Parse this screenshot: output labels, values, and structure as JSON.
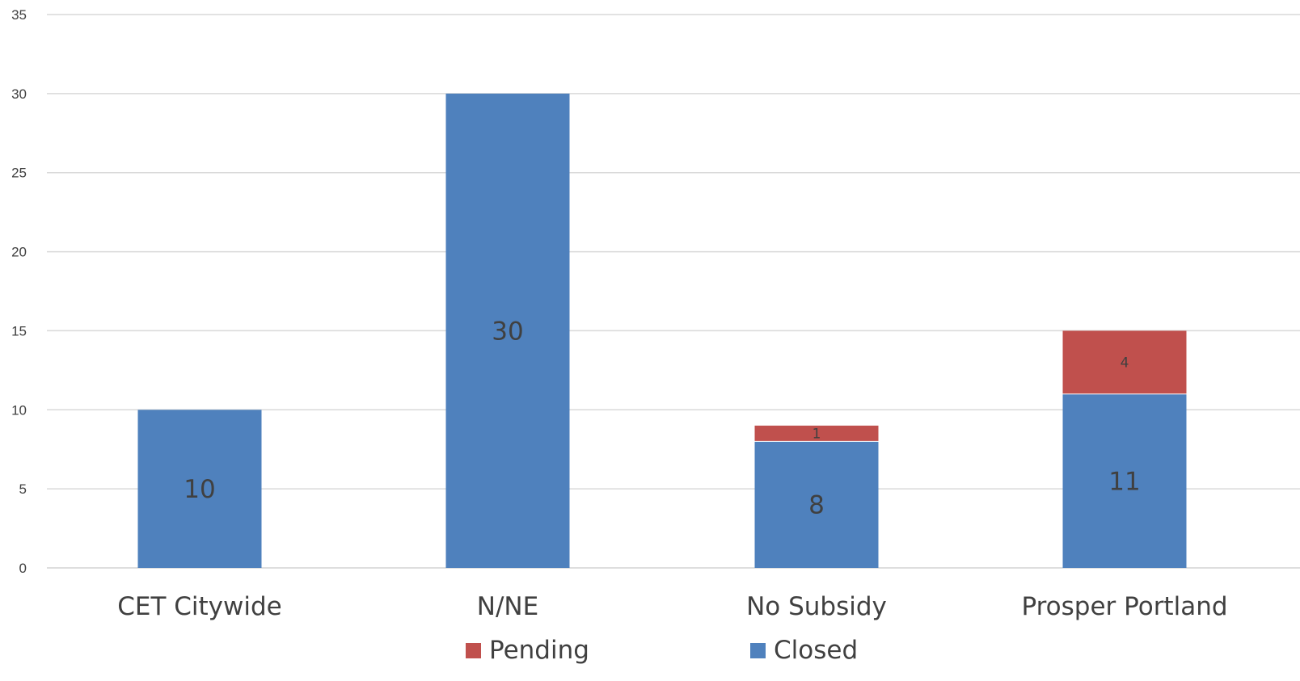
{
  "chart_data": {
    "type": "bar",
    "stacked": true,
    "categories": [
      "CET Citywide",
      "N/NE",
      "No Subsidy",
      "Prosper Portland"
    ],
    "series": [
      {
        "name": "Closed",
        "values": [
          10,
          30,
          8,
          11
        ],
        "color": "#4f81bd"
      },
      {
        "name": "Pending",
        "values": [
          0,
          0,
          1,
          4
        ],
        "color": "#c0504d"
      }
    ],
    "legend": {
      "position": "bottom",
      "items": [
        {
          "label": "Pending",
          "color": "#c0504d"
        },
        {
          "label": "Closed",
          "color": "#4f81bd"
        }
      ]
    },
    "yticks": [
      "0",
      "5",
      "10",
      "15",
      "20",
      "25",
      "30",
      "35"
    ],
    "ylim": [
      0,
      35
    ],
    "grid": true
  }
}
